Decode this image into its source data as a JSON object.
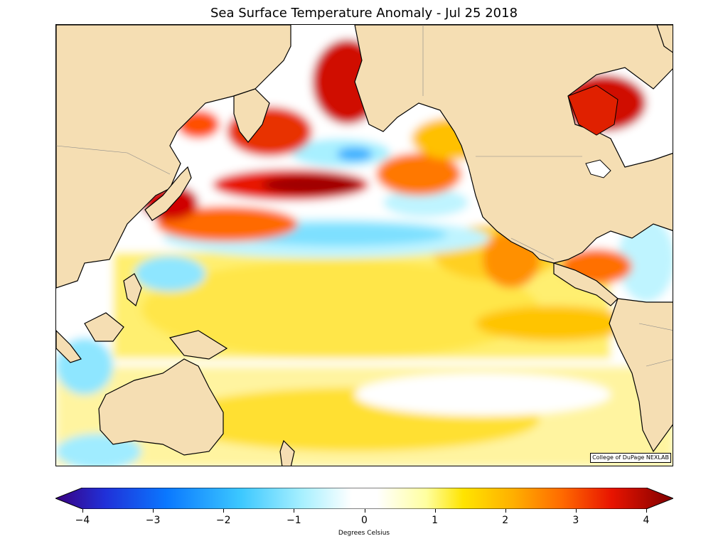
{
  "title": "Sea Surface Temperature Anomaly - Jul 25 2018",
  "credit": "College of DuPage NEXLAB",
  "colorbar": {
    "label": "Degrees Celsius",
    "ticks": [
      "−4",
      "−3",
      "−2",
      "−1",
      "0",
      "1",
      "2",
      "3",
      "4"
    ],
    "range": [
      -4,
      4
    ],
    "colors": [
      "#3a0080",
      "#1f1fd6",
      "#0a78ff",
      "#3cc8ff",
      "#a8f0ff",
      "#ffffff",
      "#ffffa0",
      "#ffe400",
      "#ffb000",
      "#ff6a00",
      "#e81400",
      "#b00000",
      "#800000"
    ]
  },
  "map": {
    "land_color": "#f5deb3",
    "ocean_base": "#ffffff"
  }
}
